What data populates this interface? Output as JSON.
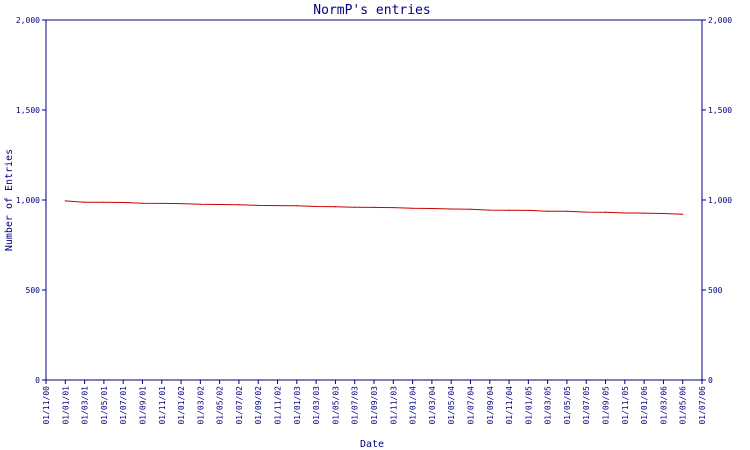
{
  "chart_data": {
    "type": "line",
    "title": "NormP's entries",
    "xlabel": "Date",
    "ylabel": "Number of Entries",
    "ylim": [
      0,
      2000
    ],
    "y_ticks": [
      0,
      500,
      1000,
      1500,
      2000
    ],
    "y_tick_labels": [
      "0",
      "500",
      "1,000",
      "1,500",
      "2,000"
    ],
    "right_axis_mirrored": true,
    "x_tick_labels": [
      "01/11/00",
      "01/01/01",
      "01/03/01",
      "01/05/01",
      "01/07/01",
      "01/09/01",
      "01/11/01",
      "01/01/02",
      "01/03/02",
      "01/05/02",
      "01/07/02",
      "01/09/02",
      "01/11/02",
      "01/01/03",
      "01/03/03",
      "01/05/03",
      "01/07/03",
      "01/09/03",
      "01/11/03",
      "01/01/04",
      "01/03/04",
      "01/05/04",
      "01/07/04",
      "01/09/04",
      "01/11/04",
      "01/01/05",
      "01/03/05",
      "01/05/05",
      "01/07/05",
      "01/09/05",
      "01/11/05",
      "01/01/06",
      "01/03/06",
      "01/05/06",
      "01/07/06"
    ],
    "x_range": [
      "01/11/00",
      "01/07/06"
    ],
    "grid": false,
    "legend": "none",
    "series": [
      {
        "color": "#cc0000",
        "points": [
          {
            "x": "01/01/01",
            "y": 995
          },
          {
            "x": "01/03/01",
            "y": 988
          },
          {
            "x": "01/05/01",
            "y": 987
          },
          {
            "x": "01/07/01",
            "y": 986
          },
          {
            "x": "01/09/01",
            "y": 982
          },
          {
            "x": "01/11/01",
            "y": 981
          },
          {
            "x": "01/01/02",
            "y": 980
          },
          {
            "x": "01/03/02",
            "y": 976
          },
          {
            "x": "01/05/02",
            "y": 975
          },
          {
            "x": "01/07/02",
            "y": 974
          },
          {
            "x": "01/09/02",
            "y": 970
          },
          {
            "x": "01/11/02",
            "y": 969
          },
          {
            "x": "01/01/03",
            "y": 968
          },
          {
            "x": "01/03/03",
            "y": 964
          },
          {
            "x": "01/05/03",
            "y": 963
          },
          {
            "x": "01/07/03",
            "y": 960
          },
          {
            "x": "01/09/03",
            "y": 959
          },
          {
            "x": "01/11/03",
            "y": 958
          },
          {
            "x": "01/01/04",
            "y": 954
          },
          {
            "x": "01/03/04",
            "y": 953
          },
          {
            "x": "01/05/04",
            "y": 950
          },
          {
            "x": "01/07/04",
            "y": 949
          },
          {
            "x": "01/09/04",
            "y": 944
          },
          {
            "x": "01/11/04",
            "y": 943
          },
          {
            "x": "01/01/05",
            "y": 942
          },
          {
            "x": "01/03/05",
            "y": 938
          },
          {
            "x": "01/05/05",
            "y": 937
          },
          {
            "x": "01/07/05",
            "y": 933
          },
          {
            "x": "01/09/05",
            "y": 932
          },
          {
            "x": "01/11/05",
            "y": 928
          },
          {
            "x": "01/01/06",
            "y": 927
          },
          {
            "x": "01/03/06",
            "y": 925
          },
          {
            "x": "01/05/06",
            "y": 921
          }
        ]
      }
    ]
  }
}
